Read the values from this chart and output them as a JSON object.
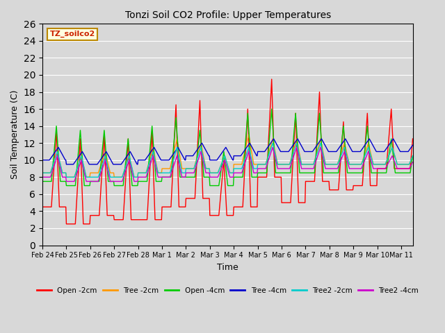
{
  "title": "Tonzi Soil CO2 Profile: Upper Temperatures",
  "xlabel": "Time",
  "ylabel": "Soil Temperature (C)",
  "ylim": [
    0,
    26
  ],
  "yticks": [
    0,
    2,
    4,
    6,
    8,
    10,
    12,
    14,
    16,
    18,
    20,
    22,
    24,
    26
  ],
  "background_color": "#d8d8d8",
  "plot_bg_color": "#d8d8d8",
  "series": [
    {
      "label": "Open -2cm",
      "color": "#ff0000",
      "lw": 1.0
    },
    {
      "label": "Tree -2cm",
      "color": "#ff9900",
      "lw": 1.0
    },
    {
      "label": "Open -4cm",
      "color": "#00cc00",
      "lw": 1.0
    },
    {
      "label": "Tree -4cm",
      "color": "#0000cc",
      "lw": 1.0
    },
    {
      "label": "Tree2 -2cm",
      "color": "#00cccc",
      "lw": 1.0
    },
    {
      "label": "Tree2 -4cm",
      "color": "#cc00cc",
      "lw": 1.0
    }
  ],
  "watermark": "TZ_soilco2",
  "tick_labels": [
    "Feb 24",
    "Feb 25",
    "Feb 26",
    "Feb 27",
    "Feb 28",
    "Mar 1",
    "Mar 2",
    "Mar 3",
    "Mar 4",
    "Mar 5",
    "Mar 6",
    "Mar 7",
    "Mar 8",
    "Mar 9",
    "Mar 10",
    "Mar 11"
  ]
}
